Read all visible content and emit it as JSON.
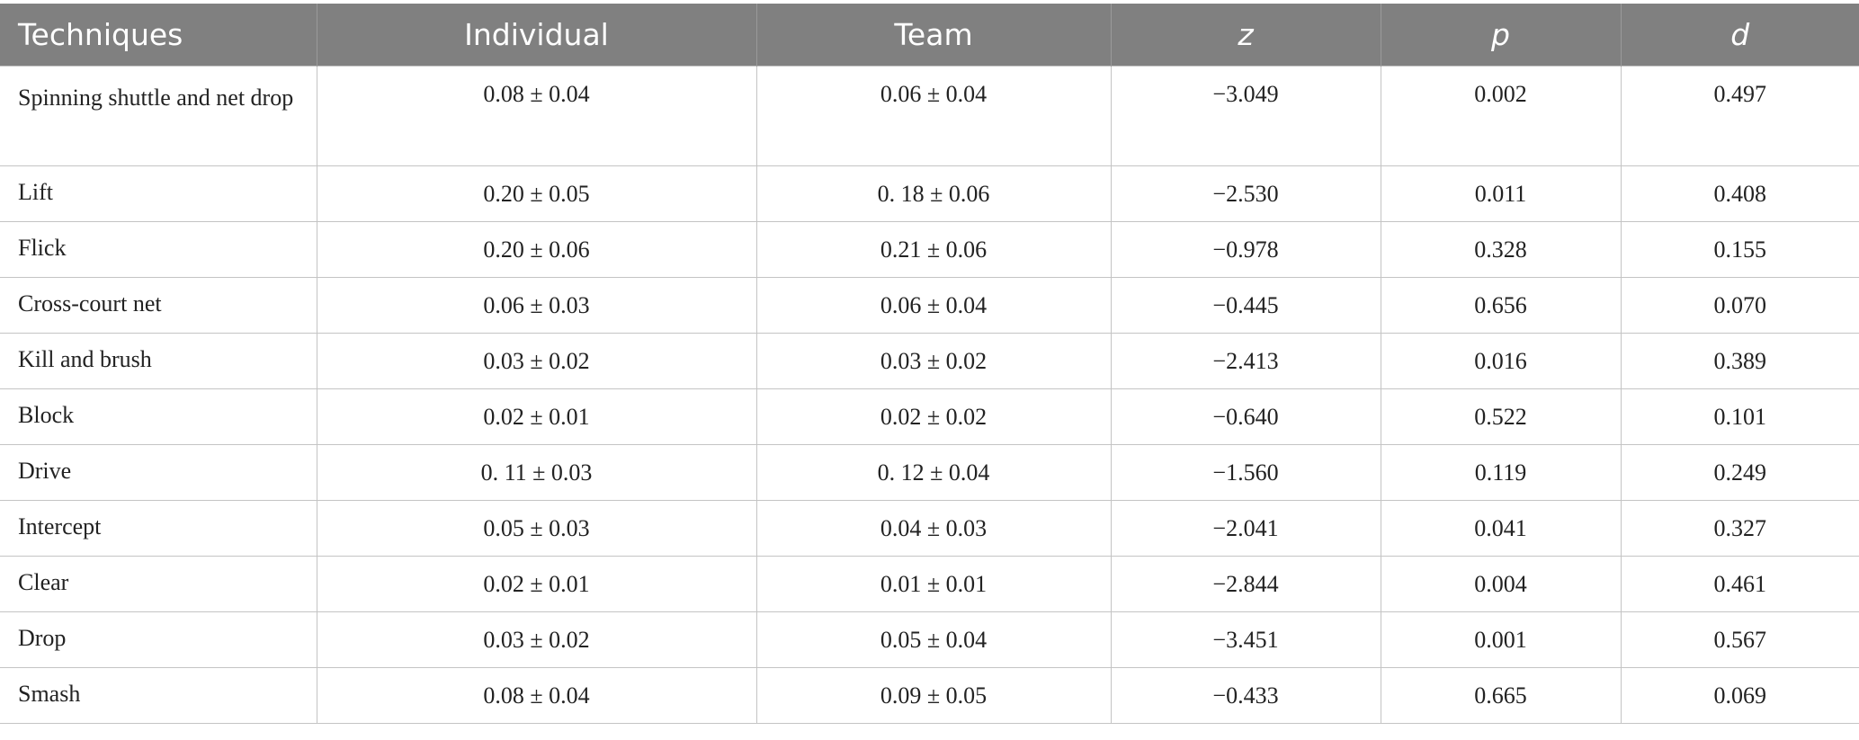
{
  "table": {
    "headers": [
      "Techniques",
      "Individual",
      "Team",
      "z",
      "p",
      "d"
    ],
    "rows": [
      [
        "Spinning shuttle and net drop",
        "0.08 ± 0.04",
        "0.06 ± 0.04",
        "−3.049",
        "0.002",
        "0.497"
      ],
      [
        "Lift",
        "0.20 ± 0.05",
        "0. 18 ± 0.06",
        "−2.530",
        "0.011",
        "0.408"
      ],
      [
        "Flick",
        "0.20 ± 0.06",
        "0.21 ± 0.06",
        "−0.978",
        "0.328",
        "0.155"
      ],
      [
        "Cross-court net",
        "0.06 ± 0.03",
        "0.06 ± 0.04",
        "−0.445",
        "0.656",
        "0.070"
      ],
      [
        "Kill and brush",
        "0.03 ± 0.02",
        "0.03 ± 0.02",
        "−2.413",
        "0.016",
        "0.389"
      ],
      [
        "Block",
        "0.02 ± 0.01",
        "0.02 ± 0.02",
        "−0.640",
        "0.522",
        "0.101"
      ],
      [
        "Drive",
        "0. 11 ± 0.03",
        "0. 12 ± 0.04",
        "−1.560",
        "0.119",
        "0.249"
      ],
      [
        "Intercept",
        "0.05 ± 0.03",
        "0.04 ± 0.03",
        "−2.041",
        "0.041",
        "0.327"
      ],
      [
        "Clear",
        "0.02 ± 0.01",
        "0.01 ± 0.01",
        "−2.844",
        "0.004",
        "0.461"
      ],
      [
        "Drop",
        "0.03 ± 0.02",
        "0.05 ± 0.04",
        "−3.451",
        "0.001",
        "0.567"
      ],
      [
        "Smash",
        "0.08 ± 0.04",
        "0.09 ± 0.05",
        "−0.433",
        "0.665",
        "0.069"
      ]
    ]
  }
}
